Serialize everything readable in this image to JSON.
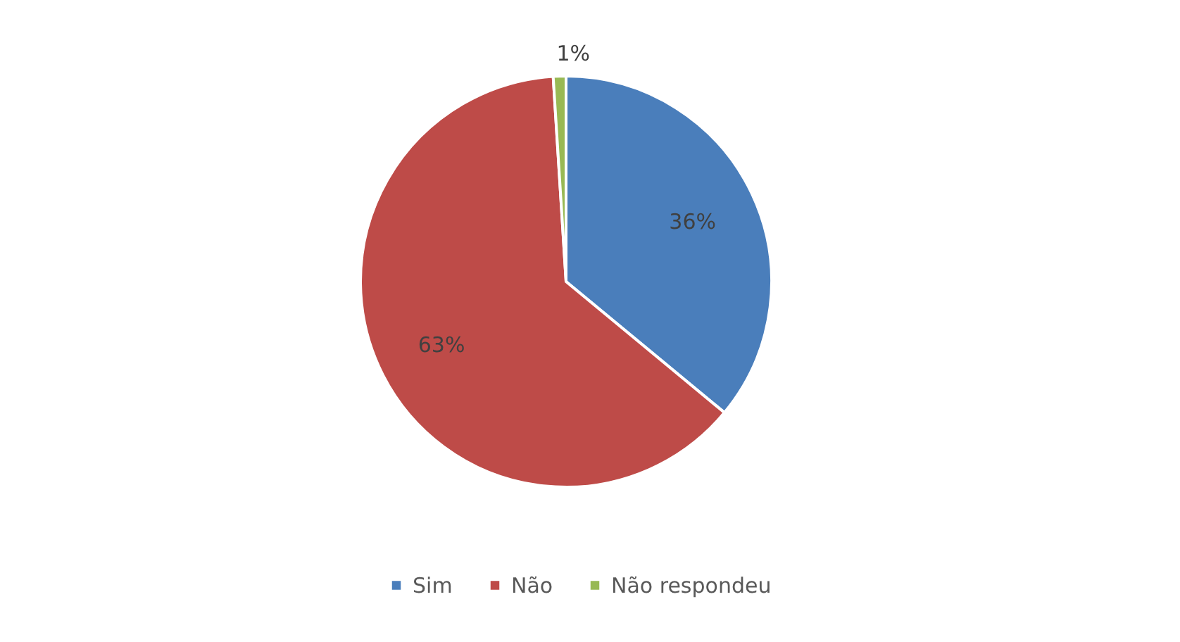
{
  "chart_data": {
    "type": "pie",
    "categories": [
      "Sim",
      "Não",
      "Não respondeu"
    ],
    "values": [
      36,
      63,
      1
    ],
    "colors": [
      "#4a7ebb",
      "#be4b48",
      "#98b954"
    ],
    "value_labels": [
      "36%",
      "63%",
      "1%"
    ],
    "legend": "bottom"
  }
}
